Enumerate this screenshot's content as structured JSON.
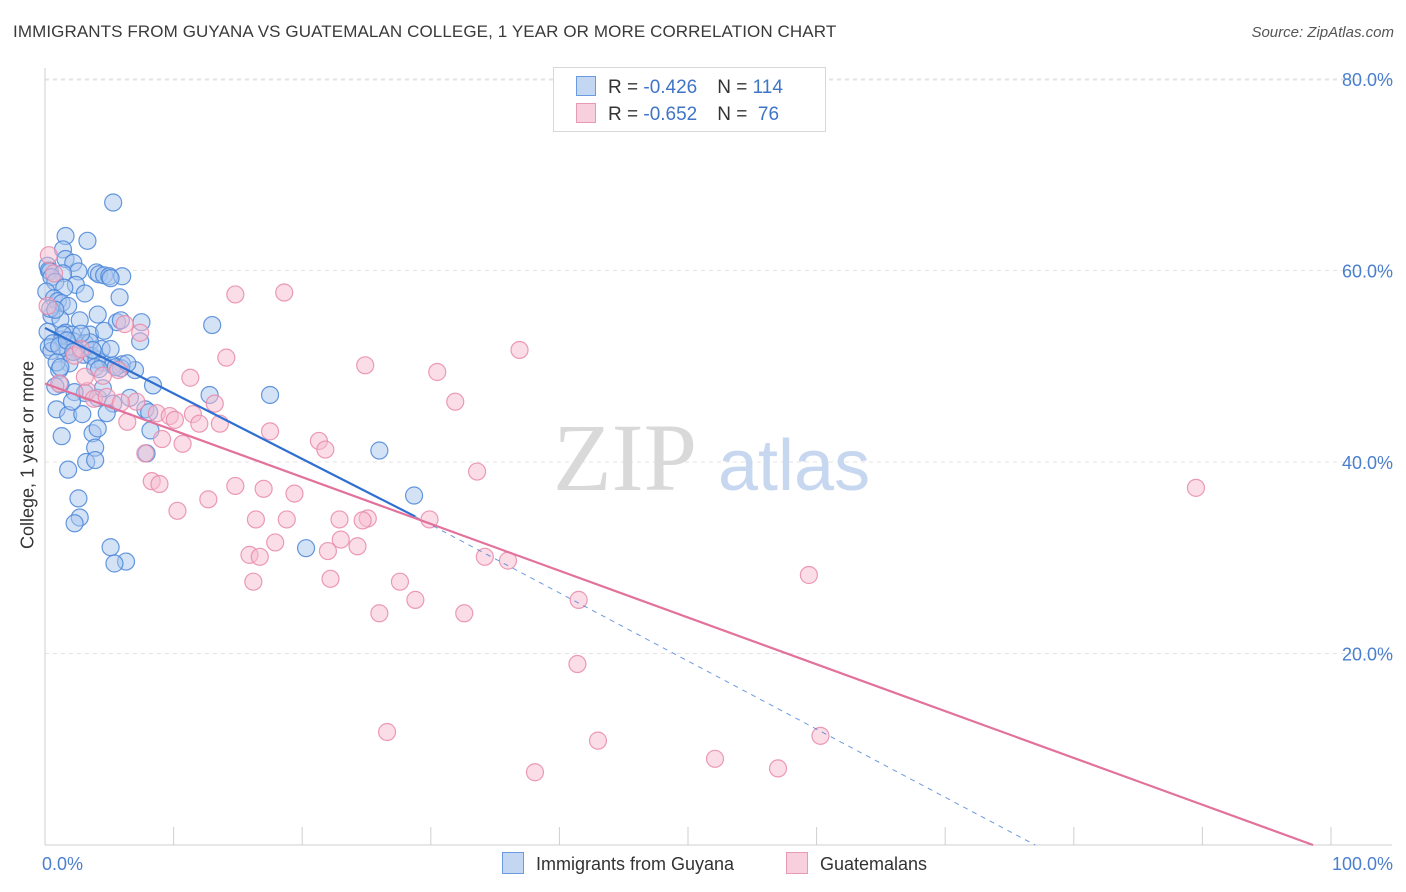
{
  "title": "IMMIGRANTS FROM GUYANA VS GUATEMALAN COLLEGE, 1 YEAR OR MORE CORRELATION CHART",
  "source": "Source: ZipAtlas.com",
  "watermark": {
    "zip": "ZIP",
    "atlas": "atlas"
  },
  "colors": {
    "blue_fill": "#a9c6ee",
    "blue_stroke": "#4a86d8",
    "blue_line": "#2f6fd1",
    "pink_fill": "#f5bcd0",
    "pink_stroke": "#e98aaa",
    "pink_line": "#e2719b",
    "grid": "#e3e3e3",
    "axis_label": "#4a7fcf"
  },
  "legend": {
    "rows": [
      {
        "r_label": "R = ",
        "r_value": "-0.426",
        "n_label": "N = ",
        "n_value": "114"
      },
      {
        "r_label": "R = ",
        "r_value": "-0.652",
        "n_label": "N = ",
        "n_value": " 76"
      }
    ]
  },
  "bottom_legend": [
    "Immigrants from Guyana",
    "Guatemalans"
  ],
  "chart_data": {
    "type": "scatter",
    "title": "IMMIGRANTS FROM GUYANA VS GUATEMALAN COLLEGE, 1 YEAR OR MORE CORRELATION CHART",
    "xlabel": "",
    "ylabel": "College, 1 year or more",
    "xlim": [
      0,
      100
    ],
    "ylim": [
      0,
      82
    ],
    "x_tick_labels": [
      {
        "value": 0,
        "label": "0.0%"
      },
      {
        "value": 100,
        "label": "100.0%"
      }
    ],
    "y_ticks": [
      {
        "value": 20,
        "label": "20.0%"
      },
      {
        "value": 40,
        "label": "40.0%"
      },
      {
        "value": 60,
        "label": "60.0%"
      },
      {
        "value": 80,
        "label": "80.0%"
      }
    ],
    "grid": "horizontal dashed",
    "legend_position": "top-center",
    "series": [
      {
        "name": "Immigrants from Guyana",
        "color": "#4a86d8",
        "r": -0.426,
        "n": 114,
        "trend": {
          "x0": 0,
          "y0": 54.0,
          "x1": 28.8,
          "y1": 34.3,
          "dashed_to_x": 77,
          "dashed_to_y": 0
        },
        "points": [
          [
            5.3,
            67.1
          ],
          [
            1.6,
            63.6
          ],
          [
            3.3,
            63.1
          ],
          [
            1.4,
            62.2
          ],
          [
            1.6,
            61.2
          ],
          [
            2.2,
            60.8
          ],
          [
            0.2,
            60.5
          ],
          [
            0.3,
            60.0
          ],
          [
            0.4,
            59.9
          ],
          [
            2.6,
            59.9
          ],
          [
            1.4,
            59.7
          ],
          [
            0.5,
            59.3
          ],
          [
            4.0,
            59.8
          ],
          [
            4.2,
            59.6
          ],
          [
            4.6,
            59.5
          ],
          [
            5.0,
            59.4
          ],
          [
            0.8,
            58.8
          ],
          [
            2.4,
            58.5
          ],
          [
            1.5,
            58.2
          ],
          [
            0.1,
            57.8
          ],
          [
            3.1,
            57.6
          ],
          [
            5.8,
            57.2
          ],
          [
            0.7,
            57.1
          ],
          [
            1.0,
            56.8
          ],
          [
            1.3,
            56.6
          ],
          [
            1.8,
            56.3
          ],
          [
            4.1,
            55.4
          ],
          [
            0.5,
            55.3
          ],
          [
            1.2,
            54.9
          ],
          [
            2.7,
            54.8
          ],
          [
            5.6,
            54.6
          ],
          [
            5.9,
            54.8
          ],
          [
            7.5,
            54.6
          ],
          [
            13.0,
            54.3
          ],
          [
            0.2,
            53.6
          ],
          [
            1.6,
            53.5
          ],
          [
            2.1,
            53.3
          ],
          [
            3.5,
            53.3
          ],
          [
            4.6,
            53.7
          ],
          [
            1.3,
            52.8
          ],
          [
            2.2,
            52.6
          ],
          [
            3.1,
            52.4
          ],
          [
            3.5,
            52.5
          ],
          [
            7.4,
            52.6
          ],
          [
            0.3,
            52.0
          ],
          [
            1.7,
            51.9
          ],
          [
            2.5,
            51.6
          ],
          [
            1.5,
            51.4
          ],
          [
            3.0,
            51.2
          ],
          [
            3.6,
            51.1
          ],
          [
            0.5,
            51.6
          ],
          [
            4.0,
            50.7
          ],
          [
            4.5,
            50.4
          ],
          [
            6.0,
            50.2
          ],
          [
            1.9,
            50.3
          ],
          [
            5.3,
            50.1
          ],
          [
            3.9,
            49.9
          ],
          [
            4.2,
            49.7
          ],
          [
            7.0,
            49.6
          ],
          [
            1.1,
            49.6
          ],
          [
            1.2,
            48.1
          ],
          [
            0.8,
            47.9
          ],
          [
            8.4,
            48.0
          ],
          [
            12.8,
            47.0
          ],
          [
            17.5,
            47.0
          ],
          [
            3.1,
            47.2
          ],
          [
            4.1,
            46.7
          ],
          [
            5.3,
            46.1
          ],
          [
            0.9,
            45.5
          ],
          [
            4.8,
            45.1
          ],
          [
            7.8,
            45.5
          ],
          [
            8.1,
            45.2
          ],
          [
            1.8,
            44.9
          ],
          [
            2.9,
            45.0
          ],
          [
            8.2,
            43.3
          ],
          [
            3.7,
            43.0
          ],
          [
            4.1,
            43.5
          ],
          [
            1.3,
            42.7
          ],
          [
            3.9,
            41.5
          ],
          [
            7.9,
            40.9
          ],
          [
            26.0,
            41.2
          ],
          [
            3.2,
            40.0
          ],
          [
            3.9,
            40.2
          ],
          [
            1.8,
            39.2
          ],
          [
            2.6,
            36.2
          ],
          [
            28.7,
            36.5
          ],
          [
            2.7,
            34.2
          ],
          [
            2.3,
            33.6
          ],
          [
            5.1,
            31.1
          ],
          [
            20.3,
            31.0
          ],
          [
            6.3,
            29.6
          ],
          [
            5.4,
            29.4
          ],
          [
            6.0,
            59.4
          ],
          [
            5.1,
            59.2
          ],
          [
            0.4,
            56.0
          ],
          [
            0.8,
            55.9
          ],
          [
            2.8,
            53.4
          ],
          [
            1.4,
            53.3
          ],
          [
            0.6,
            52.4
          ],
          [
            1.1,
            52.1
          ],
          [
            1.7,
            52.7
          ],
          [
            4.4,
            51.8
          ],
          [
            2.2,
            51.5
          ],
          [
            3.7,
            51.7
          ],
          [
            5.9,
            49.8
          ],
          [
            5.5,
            49.9
          ],
          [
            5.1,
            51.8
          ],
          [
            6.4,
            50.3
          ],
          [
            4.5,
            47.7
          ],
          [
            2.3,
            47.3
          ],
          [
            0.9,
            50.4
          ],
          [
            1.2,
            49.9
          ],
          [
            2.1,
            46.3
          ],
          [
            6.6,
            46.7
          ]
        ]
      },
      {
        "name": "Guatemalans",
        "color": "#e98aaa",
        "r": -0.652,
        "n": 76,
        "trend": {
          "x0": 0,
          "y0": 48.2,
          "x1": 100,
          "y1": 0
        },
        "points": [
          [
            0.3,
            61.6
          ],
          [
            0.7,
            59.7
          ],
          [
            14.8,
            57.5
          ],
          [
            18.6,
            57.7
          ],
          [
            0.2,
            56.3
          ],
          [
            36.9,
            51.7
          ],
          [
            6.2,
            54.4
          ],
          [
            7.4,
            53.5
          ],
          [
            14.1,
            50.9
          ],
          [
            2.3,
            51.1
          ],
          [
            2.8,
            51.8
          ],
          [
            24.9,
            50.1
          ],
          [
            30.5,
            49.4
          ],
          [
            5.7,
            49.6
          ],
          [
            11.3,
            48.8
          ],
          [
            4.5,
            49.0
          ],
          [
            1.1,
            48.2
          ],
          [
            3.3,
            47.4
          ],
          [
            3.8,
            46.6
          ],
          [
            4.8,
            46.8
          ],
          [
            7.1,
            46.3
          ],
          [
            13.2,
            46.1
          ],
          [
            31.9,
            46.3
          ],
          [
            8.7,
            45.1
          ],
          [
            9.7,
            44.8
          ],
          [
            10.1,
            44.4
          ],
          [
            11.5,
            45.0
          ],
          [
            12.0,
            44.0
          ],
          [
            13.6,
            44.0
          ],
          [
            6.4,
            44.2
          ],
          [
            17.5,
            43.2
          ],
          [
            21.3,
            42.2
          ],
          [
            21.8,
            41.3
          ],
          [
            7.8,
            40.9
          ],
          [
            10.7,
            41.9
          ],
          [
            33.6,
            39.0
          ],
          [
            8.3,
            38.0
          ],
          [
            8.9,
            37.7
          ],
          [
            14.8,
            37.5
          ],
          [
            17.0,
            37.2
          ],
          [
            19.4,
            36.7
          ],
          [
            12.7,
            36.1
          ],
          [
            10.3,
            34.9
          ],
          [
            16.4,
            34.0
          ],
          [
            18.8,
            34.0
          ],
          [
            22.9,
            34.0
          ],
          [
            25.1,
            34.1
          ],
          [
            24.7,
            33.9
          ],
          [
            29.9,
            34.0
          ],
          [
            23.0,
            31.9
          ],
          [
            17.9,
            31.6
          ],
          [
            24.3,
            31.2
          ],
          [
            15.9,
            30.3
          ],
          [
            16.7,
            30.1
          ],
          [
            22.0,
            30.7
          ],
          [
            34.2,
            30.1
          ],
          [
            36.0,
            29.7
          ],
          [
            27.6,
            27.5
          ],
          [
            16.2,
            27.5
          ],
          [
            22.2,
            27.8
          ],
          [
            28.8,
            25.6
          ],
          [
            41.5,
            25.6
          ],
          [
            32.6,
            24.2
          ],
          [
            26.0,
            24.2
          ],
          [
            59.4,
            28.2
          ],
          [
            89.5,
            37.3
          ],
          [
            43.0,
            10.9
          ],
          [
            26.6,
            11.8
          ],
          [
            38.1,
            7.6
          ],
          [
            52.1,
            9.0
          ],
          [
            57.0,
            8.0
          ],
          [
            60.3,
            11.4
          ],
          [
            41.4,
            18.9
          ],
          [
            5.9,
            46.2
          ],
          [
            3.1,
            48.9
          ],
          [
            9.1,
            42.4
          ]
        ]
      }
    ]
  }
}
